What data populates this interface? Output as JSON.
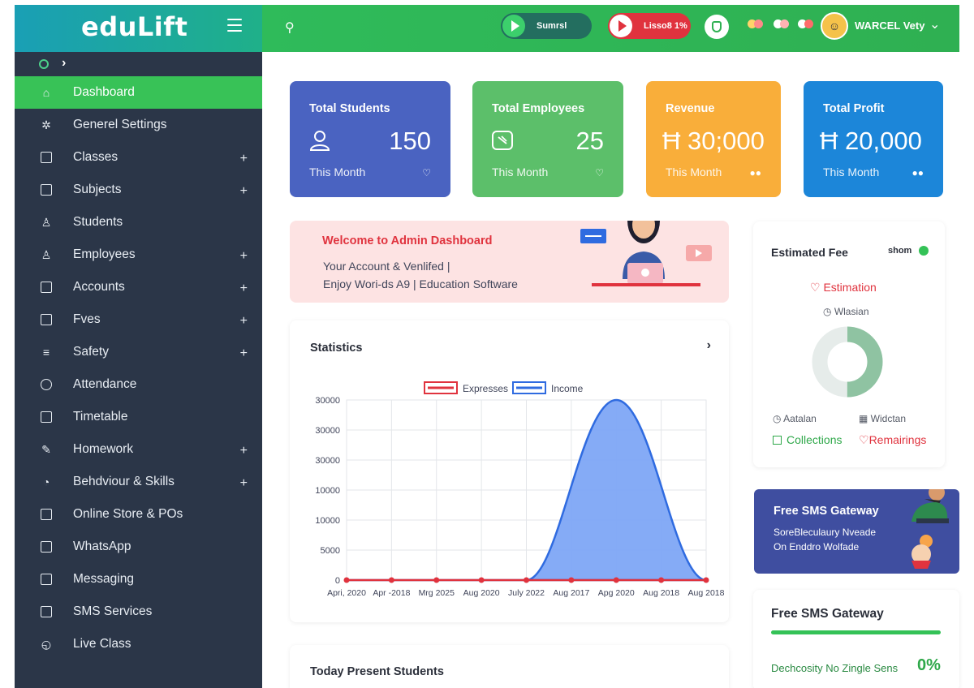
{
  "brand": {
    "logo": "eduLift"
  },
  "sidebar": {
    "items": [
      {
        "label": "Dashboard",
        "icon": "dashboard-icon",
        "active": true,
        "expandable": false
      },
      {
        "label": "Generel Settings",
        "icon": "gear-icon",
        "expandable": false
      },
      {
        "label": "Classes",
        "icon": "classes-icon",
        "expandable": true
      },
      {
        "label": "Subjects",
        "icon": "subjects-icon",
        "expandable": true
      },
      {
        "label": "Students",
        "icon": "students-icon",
        "expandable": false
      },
      {
        "label": "Employees",
        "icon": "employees-icon",
        "expandable": true
      },
      {
        "label": "Accounts",
        "icon": "accounts-icon",
        "expandable": true
      },
      {
        "label": "Fves",
        "icon": "fees-icon",
        "expandable": true
      },
      {
        "label": "Safety",
        "icon": "safety-icon",
        "expandable": true
      },
      {
        "label": "Attendance",
        "icon": "attendance-icon",
        "expandable": false
      },
      {
        "label": "Timetable",
        "icon": "timetable-icon",
        "expandable": false
      },
      {
        "label": "Homework",
        "icon": "homework-icon",
        "expandable": true
      },
      {
        "label": "Behdviour & Skills",
        "icon": "behaviour-icon",
        "expandable": true
      },
      {
        "label": "Online Store & POs",
        "icon": "store-icon",
        "expandable": false
      },
      {
        "label": "WhatsApp",
        "icon": "whatsapp-icon",
        "expandable": false
      },
      {
        "label": "Messaging",
        "icon": "messaging-icon",
        "expandable": false
      },
      {
        "label": "SMS Services",
        "icon": "sms-icon",
        "expandable": false
      },
      {
        "label": "Live Class",
        "icon": "live-class-icon",
        "expandable": false
      }
    ],
    "plus_symbol": "+"
  },
  "topbar": {
    "pill_green_label": "Sumrsl",
    "pill_red_label": "Lisso8  1%",
    "username": "WARCEL Vety",
    "chevron": "⌄"
  },
  "cards": [
    {
      "title": "Total Students",
      "value": "150",
      "sub": "This Month",
      "color": "#4a63c1"
    },
    {
      "title": "Total Employees",
      "value": "25",
      "sub": "This Month",
      "color": "#5cbf6a"
    },
    {
      "title": "Revenue",
      "value": "Ħ 30;000",
      "sub": "This Month",
      "color": "#f9ae3a"
    },
    {
      "title": "Total Profit",
      "value": "Ħ 20,000",
      "sub": "This Month",
      "color": "#1c86d9"
    }
  ],
  "welcome": {
    "title": "Welcome to Admin Dashboard",
    "line1": "Your Account & Venlifed |",
    "line2": "Enjoy Wori-ds A9 | Education Software"
  },
  "statistics": {
    "title": "Statistics",
    "next": "›"
  },
  "chart_data": {
    "type": "area",
    "title": "",
    "legend": [
      "Expresses",
      "Income"
    ],
    "legend_position": "top-center",
    "categories": [
      "Apri, 2020",
      "Apr -2018",
      "Mrg 2025",
      "Aug 2020",
      "July 2022",
      "Aug 2017",
      "Apg 2020",
      "Aug 2018",
      "Aug 2018"
    ],
    "ytick_labels": [
      "0",
      "5000",
      "10000",
      "10000",
      "30000",
      "30000",
      "30000"
    ],
    "series": [
      {
        "name": "Expresses",
        "color": "#e0333e",
        "values": [
          0,
          0,
          0,
          0,
          0,
          0,
          0,
          0,
          0
        ]
      },
      {
        "name": "Income",
        "color": "#2f6be0",
        "values": [
          0,
          0,
          0,
          0,
          0,
          9000,
          30000,
          9000,
          0
        ]
      }
    ],
    "grid": true
  },
  "today": {
    "title": "Today Present Students"
  },
  "fee": {
    "title": "Estimated Fee",
    "show": "shom",
    "estimation": "Estimation",
    "wlasian": "Wlasian",
    "aatalan": "Aatalan",
    "widctan": "Widctan",
    "collections": "Collections",
    "remainings": "Remairings",
    "collected_fraction": 0.5
  },
  "sms_banner": {
    "title": "Free SMS  Gateway",
    "line1": "SoreBleculaury Nveade",
    "line2": "On Enddro Wolfade"
  },
  "sms_gateway": {
    "title": "Free SMS Gateway",
    "label": "Dechcosity No Zingle Sens",
    "percent": "0%"
  }
}
